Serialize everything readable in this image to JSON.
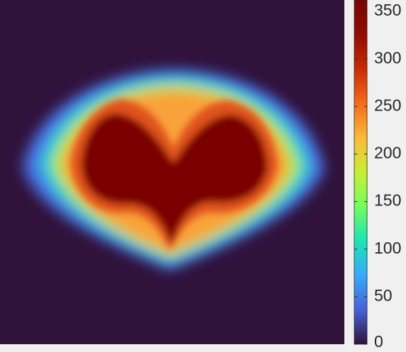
{
  "chart_data": {
    "type": "heatmap",
    "colormap": "turbo",
    "clim": [
      0,
      362
    ],
    "cticks": [
      0,
      50,
      100,
      150,
      200,
      250,
      300,
      350
    ]
  }
}
